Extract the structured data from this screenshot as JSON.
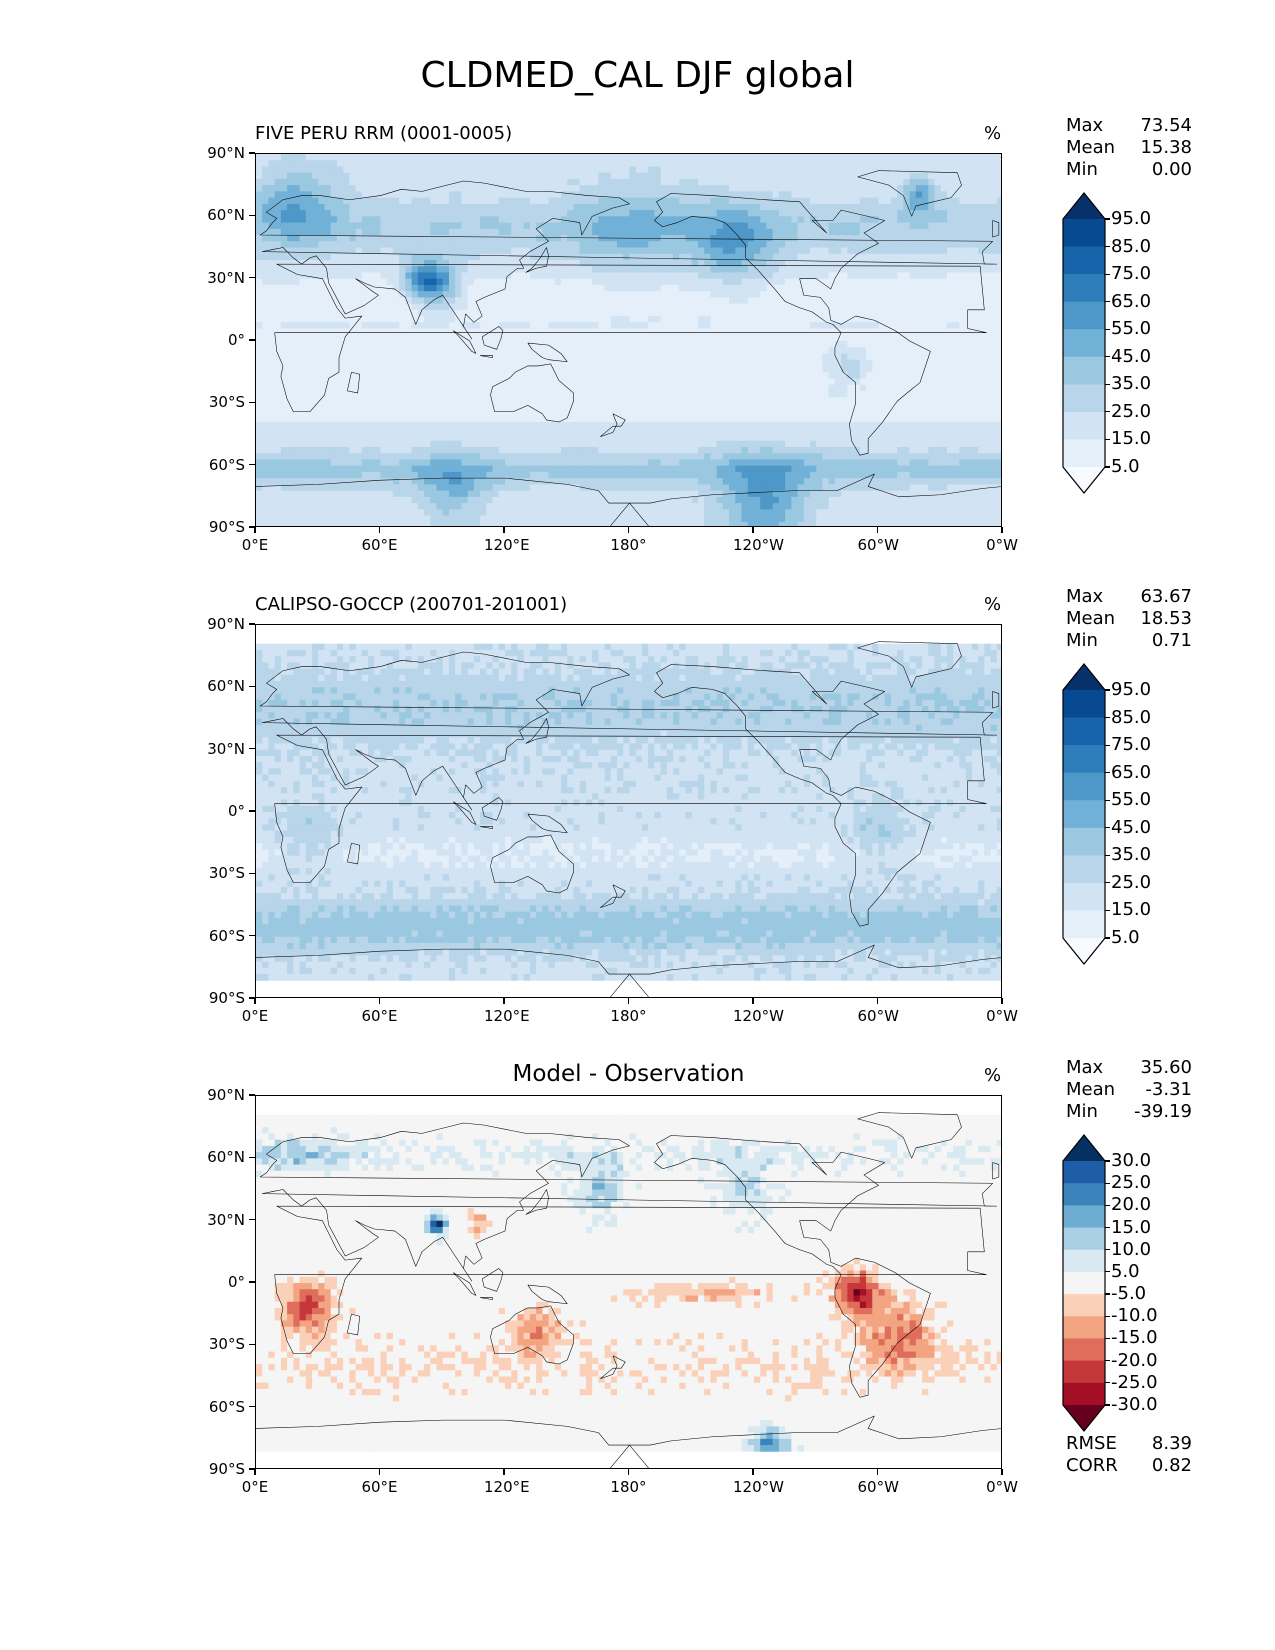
{
  "figure": {
    "title": "CLDMED_CAL DJF global"
  },
  "x_ticks": [
    "0°E",
    "60°E",
    "120°E",
    "180°",
    "120°W",
    "60°W",
    "0°W"
  ],
  "y_ticks": [
    "90°N",
    "60°N",
    "30°N",
    "0°",
    "30°S",
    "60°S",
    "90°S"
  ],
  "chart_data": [
    {
      "type": "heatmap",
      "title": "FIVE PERU RRM (0001-0005)",
      "units": "%",
      "stats": {
        "Max": "73.54",
        "Mean": "15.38",
        "Min": "0.00"
      },
      "colorbar_levels": [
        "5.0",
        "15.0",
        "25.0",
        "35.0",
        "45.0",
        "55.0",
        "65.0",
        "75.0",
        "85.0",
        "95.0"
      ],
      "colormap": [
        "#f7fbff",
        "#e4eff9",
        "#d2e3f3",
        "#b8d5ea",
        "#9ac8e0",
        "#71b1d7",
        "#4e97c9",
        "#2e7ebc",
        "#1764ab",
        "#084a91",
        "#08306b"
      ],
      "xlim": [
        0,
        360
      ],
      "ylim": [
        -90,
        90
      ]
    },
    {
      "type": "heatmap",
      "title": "CALIPSO-GOCCP (200701-201001)",
      "units": "%",
      "stats": {
        "Max": "63.67",
        "Mean": "18.53",
        "Min": "0.71"
      },
      "colorbar_levels": [
        "5.0",
        "15.0",
        "25.0",
        "35.0",
        "45.0",
        "55.0",
        "65.0",
        "75.0",
        "85.0",
        "95.0"
      ],
      "colormap": [
        "#f7fbff",
        "#e4eff9",
        "#d2e3f3",
        "#b8d5ea",
        "#9ac8e0",
        "#71b1d7",
        "#4e97c9",
        "#2e7ebc",
        "#1764ab",
        "#084a91",
        "#08306b"
      ],
      "xlim": [
        0,
        360
      ],
      "ylim": [
        -90,
        90
      ]
    },
    {
      "type": "heatmap",
      "title": "Model - Observation",
      "units": "%",
      "stats": {
        "Max": "35.60",
        "Mean": "-3.31",
        "Min": "-39.19"
      },
      "extra_stats": {
        "RMSE": "8.39",
        "CORR": "0.82"
      },
      "colorbar_levels": [
        "-30.0",
        "-25.0",
        "-20.0",
        "-15.0",
        "-10.0",
        "-5.0",
        "5.0",
        "10.0",
        "15.0",
        "20.0",
        "25.0",
        "30.0"
      ],
      "colormap": [
        "#67001f",
        "#a50f26",
        "#c5373a",
        "#de6d5b",
        "#f3a481",
        "#fbd0b9",
        "#f5f5f5",
        "#d8e9f1",
        "#a8cfe4",
        "#6eadd2",
        "#3a84bb",
        "#1f5ea6",
        "#053061"
      ],
      "xlim": [
        0,
        360
      ],
      "ylim": [
        -90,
        90
      ]
    }
  ]
}
